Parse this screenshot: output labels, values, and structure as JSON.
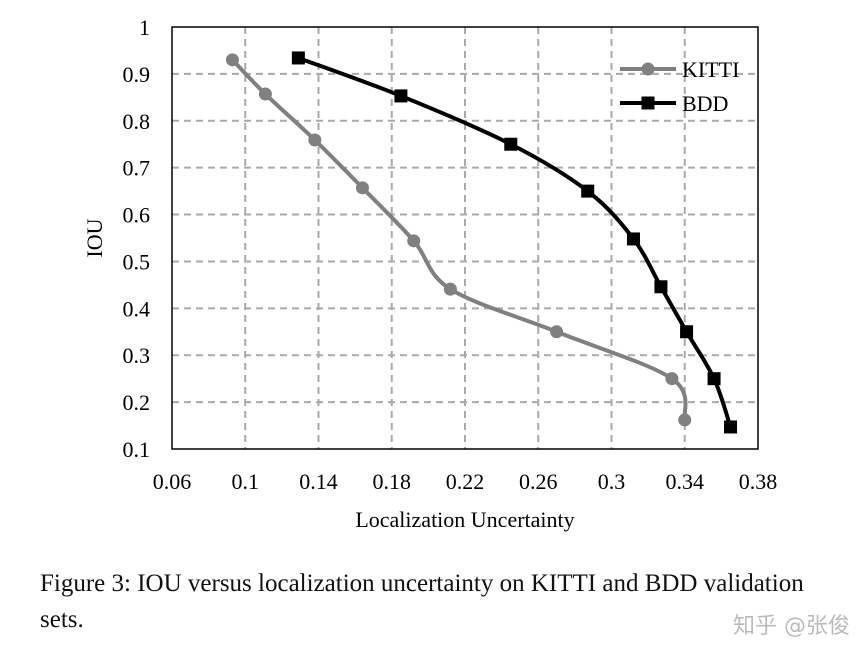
{
  "chart_data": {
    "type": "line",
    "title": "",
    "xlabel": "Localization Uncertainty",
    "ylabel": "IOU",
    "xlim": [
      0.06,
      0.38
    ],
    "ylim": [
      0.1,
      1
    ],
    "xticks": [
      "0.06",
      "0.1",
      "0.14",
      "0.18",
      "0.22",
      "0.26",
      "0.3",
      "0.34",
      "0.38"
    ],
    "xtick_values": [
      0.06,
      0.1,
      0.14,
      0.18,
      0.22,
      0.26,
      0.3,
      0.34,
      0.38
    ],
    "yticks": [
      "0.1",
      "0.2",
      "0.3",
      "0.4",
      "0.5",
      "0.6",
      "0.7",
      "0.8",
      "0.9",
      "1"
    ],
    "ytick_values": [
      0.1,
      0.2,
      0.3,
      0.4,
      0.5,
      0.6,
      0.7,
      0.8,
      0.9,
      1
    ],
    "grid": true,
    "legend_position": "top-right",
    "series": [
      {
        "name": "KITTI",
        "color": "#808080",
        "marker": "circle",
        "x": [
          0.093,
          0.111,
          0.138,
          0.164,
          0.192,
          0.212,
          0.27,
          0.333,
          0.34
        ],
        "y": [
          0.93,
          0.857,
          0.759,
          0.657,
          0.544,
          0.441,
          0.35,
          0.25,
          0.162
        ]
      },
      {
        "name": "BDD",
        "color": "#000000",
        "marker": "square",
        "x": [
          0.129,
          0.185,
          0.245,
          0.287,
          0.312,
          0.327,
          0.341,
          0.356,
          0.365
        ],
        "y": [
          0.934,
          0.853,
          0.75,
          0.65,
          0.548,
          0.446,
          0.35,
          0.25,
          0.147
        ]
      }
    ]
  },
  "caption": "Figure 3: IOU versus localization uncertainty on KITTI and BDD validation sets.",
  "watermark": "知乎 @张俊"
}
